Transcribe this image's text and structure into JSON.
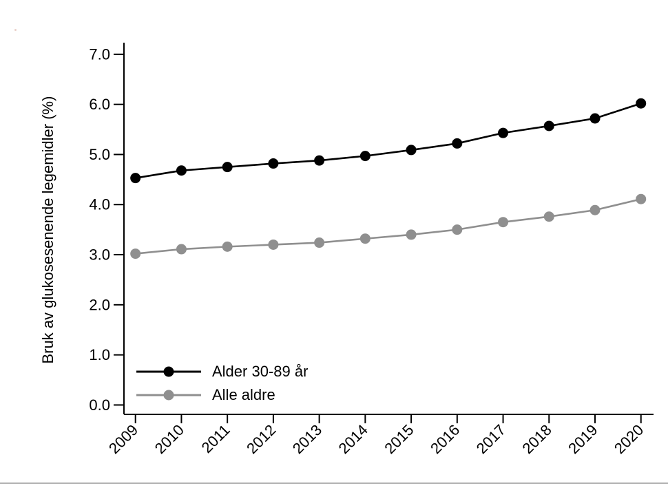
{
  "figure": {
    "background_color": "#ffffff",
    "divider_color": "#b2b2b2",
    "artifact_speck_color": "#dfbcb2"
  },
  "chart_data": {
    "type": "line",
    "title": "",
    "xlabel": "",
    "ylabel": "Bruk av glukosesenende legemidler (%)",
    "x": [
      "2009",
      "2010",
      "2011",
      "2012",
      "2013",
      "2014",
      "2015",
      "2016",
      "2017",
      "2018",
      "2019",
      "2020"
    ],
    "y_tick_labels": [
      "0.0",
      "1.0",
      "2.0",
      "3.0",
      "4.0",
      "5.0",
      "6.0",
      "7.0"
    ],
    "ylim": [
      0.0,
      7.0
    ],
    "y_tick_step": 1.0,
    "grid": false,
    "axis_color": "#000000",
    "text_color": "#000000",
    "legend_position": "inside-bottom-left",
    "series": [
      {
        "id": "alder-30-89",
        "name": "Alder 30-89 år",
        "color": "#000000",
        "values": [
          4.53,
          4.68,
          4.75,
          4.82,
          4.88,
          4.97,
          5.09,
          5.22,
          5.43,
          5.57,
          5.72,
          6.02
        ]
      },
      {
        "id": "alle-aldre",
        "name": "Alle aldre",
        "color": "#8f8f8f",
        "values": [
          3.02,
          3.11,
          3.16,
          3.2,
          3.24,
          3.32,
          3.4,
          3.5,
          3.65,
          3.76,
          3.89,
          4.11
        ]
      }
    ]
  }
}
